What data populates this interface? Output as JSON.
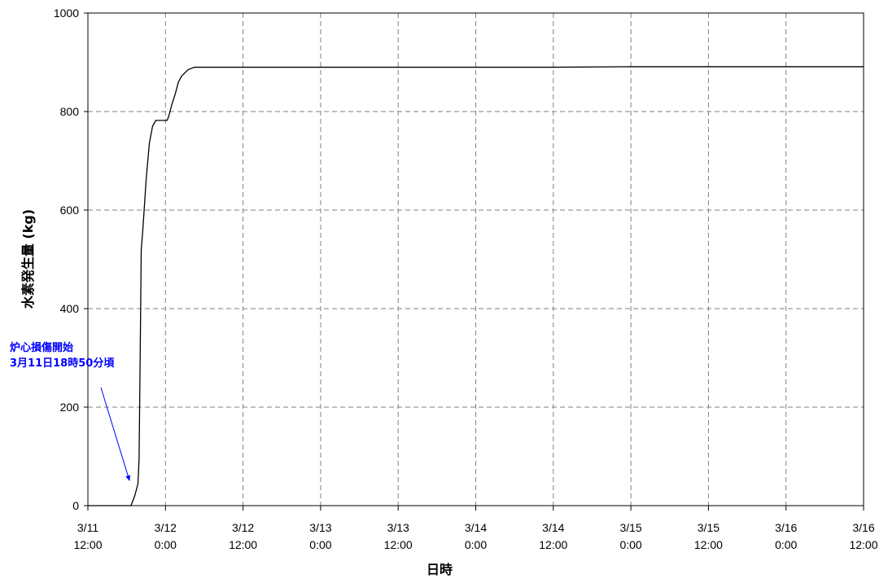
{
  "chart_data": {
    "type": "line",
    "title": "",
    "xlabel": "日時",
    "ylabel": "水素発生量 (kg)",
    "ylim": [
      0,
      1000
    ],
    "yticks": [
      0,
      200,
      400,
      600,
      800,
      1000
    ],
    "xlim": [
      "3/11 12:00",
      "3/16 12:00"
    ],
    "xticks": [
      {
        "date": "3/11",
        "time": "12:00"
      },
      {
        "date": "3/12",
        "time": "0:00"
      },
      {
        "date": "3/12",
        "time": "12:00"
      },
      {
        "date": "3/13",
        "time": "0:00"
      },
      {
        "date": "3/13",
        "time": "12:00"
      },
      {
        "date": "3/14",
        "time": "0:00"
      },
      {
        "date": "3/14",
        "time": "12:00"
      },
      {
        "date": "3/15",
        "time": "0:00"
      },
      {
        "date": "3/15",
        "time": "12:00"
      },
      {
        "date": "3/16",
        "time": "0:00"
      },
      {
        "date": "3/16",
        "time": "12:00"
      }
    ],
    "grid": true,
    "legend": "none",
    "line_color": "#000000",
    "x": [
      "3/11 12:00",
      "3/11 15:20",
      "3/11 18:40",
      "3/11 19:15",
      "3/11 19:45",
      "3/11 19:55",
      "3/11 20:05",
      "3/11 20:15",
      "3/11 20:30",
      "3/11 21:00",
      "3/11 21:30",
      "3/11 22:00",
      "3/11 22:30",
      "3/12 0:15",
      "3/12 0:30",
      "3/12 1:00",
      "3/12 1:30",
      "3/12 2:00",
      "3/12 2:30",
      "3/12 3:30",
      "3/12 4:30",
      "3/12 5:30",
      "3/14 12:00",
      "3/15 0:00",
      "3/16 12:00"
    ],
    "values": [
      0,
      0,
      0,
      20,
      45,
      95,
      300,
      520,
      560,
      660,
      735,
      770,
      782,
      782,
      790,
      815,
      835,
      860,
      872,
      885,
      890,
      890,
      890,
      891,
      891
    ],
    "annotation": {
      "text_line1": "炉心損傷開始",
      "text_line2": "3月11日18時50分頃",
      "color": "#0000ff",
      "points_to": {
        "x": "3/11 18:50",
        "y": 0
      }
    }
  }
}
